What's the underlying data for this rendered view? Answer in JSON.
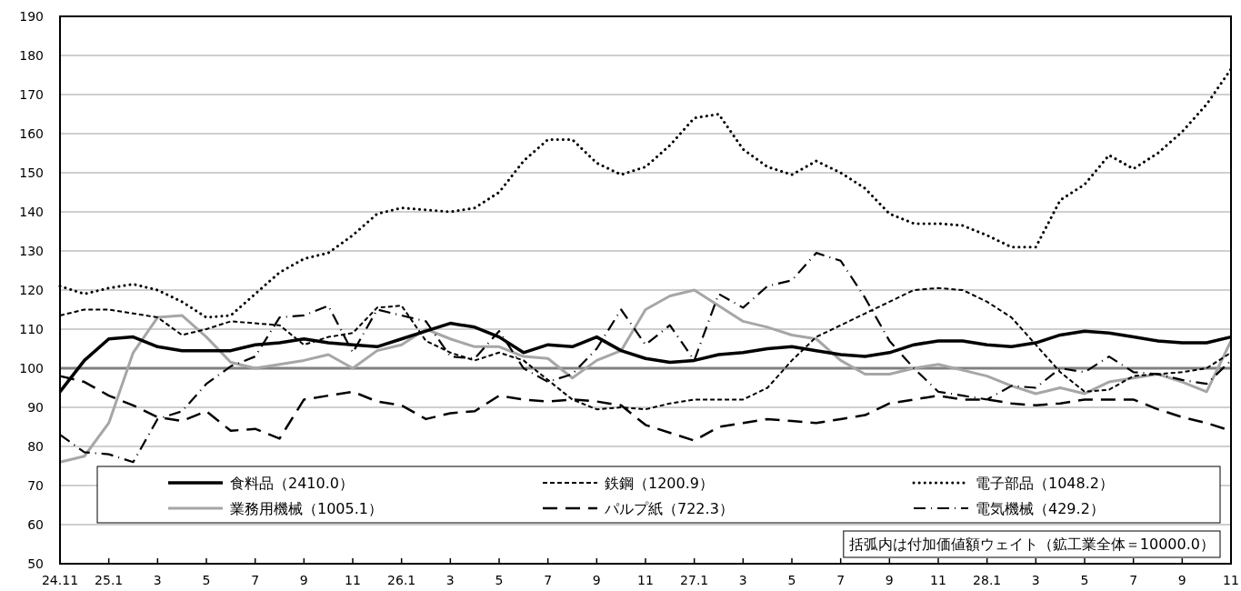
{
  "chart_data": {
    "type": "line",
    "categories": [
      "24.11",
      null,
      "25.1",
      null,
      "3",
      null,
      "5",
      null,
      "7",
      null,
      "9",
      null,
      "11",
      null,
      "26.1",
      null,
      "3",
      null,
      "5",
      null,
      "7",
      null,
      "9",
      null,
      "11",
      null,
      "27.1",
      null,
      "3",
      null,
      "5",
      null,
      "7",
      null,
      "9",
      null,
      "11",
      null,
      "28.1",
      null,
      "3",
      null,
      "5",
      null,
      "7",
      null,
      "9",
      null,
      "11"
    ],
    "ylim": [
      50,
      190
    ],
    "yticks": [
      50,
      60,
      70,
      80,
      90,
      100,
      110,
      120,
      130,
      140,
      150,
      160,
      170,
      180,
      190
    ],
    "grid": "y",
    "legend": "bottom",
    "ref_lines": [
      {
        "axis": "y",
        "value": 100,
        "color": "#808080"
      }
    ],
    "annotations": [
      "括弧内は付加価値額ウェイト（鉱工業全体＝10000.0）"
    ],
    "series": [
      {
        "name": "食料品（2410.0）",
        "color": "#000000",
        "line_style": "solid",
        "values": [
          94,
          102,
          107.5,
          108,
          105.5,
          104.5,
          104.5,
          104.5,
          106,
          106.5,
          107.5,
          106.5,
          106,
          105.5,
          107.5,
          109.5,
          111.5,
          110.5,
          108,
          104,
          106,
          105.5,
          108,
          104.5,
          102.5,
          101.5,
          102,
          103.5,
          104,
          105,
          105.5,
          104.5,
          103.5,
          103,
          104,
          106,
          107,
          107,
          106,
          105.5,
          106.5,
          108.5,
          109.5,
          109,
          108,
          107,
          106.5,
          106.5,
          108
        ]
      },
      {
        "name": "鉄鋼（1200.9）",
        "color": "#000000",
        "line_style": "dashed",
        "values": [
          113.5,
          115,
          115,
          114,
          113,
          108.5,
          110,
          112,
          111.5,
          111,
          106,
          108,
          109,
          115.5,
          116,
          107,
          104,
          102,
          104,
          102,
          97,
          92,
          89.5,
          90,
          89.5,
          91,
          92,
          92,
          92,
          95,
          102,
          108,
          111,
          114,
          117,
          120,
          120.5,
          120,
          117,
          113,
          106,
          99,
          94,
          94.5,
          98,
          98.5,
          99,
          100,
          104
        ]
      },
      {
        "name": "電子部品（1048.2）",
        "color": "#000000",
        "line_style": "dotted",
        "values": [
          121,
          119,
          120.5,
          121.5,
          120,
          117,
          113,
          113.5,
          119,
          124.5,
          128,
          129.5,
          134,
          139.5,
          141,
          140.5,
          140,
          141,
          145,
          153,
          158.5,
          158.5,
          152.5,
          149.5,
          151.5,
          157,
          164,
          165,
          156,
          151.5,
          149.5,
          153,
          150,
          146,
          139.5,
          137,
          137,
          136.5,
          134,
          131,
          131,
          143,
          147,
          154.5,
          151,
          155,
          160.5,
          167.5,
          176.5
        ]
      },
      {
        "name": "業務用機械（1005.1）",
        "color": "#a6a6a6",
        "line_style": "solid",
        "values": [
          76,
          77.5,
          86,
          104,
          113,
          113.5,
          108,
          101.5,
          100,
          101,
          102,
          103.5,
          100,
          104.5,
          106,
          110,
          107.5,
          105.5,
          105.5,
          103,
          102.5,
          97.5,
          102,
          104.5,
          115,
          118.5,
          120,
          116,
          112,
          110.5,
          108.5,
          107.5,
          102,
          98.5,
          98.5,
          100,
          101,
          99.5,
          98,
          95.5,
          93.5,
          95,
          93.5,
          96.5,
          97.5,
          98.5,
          96.5,
          94,
          107
        ]
      },
      {
        "name": "パルプ紙（722.3）",
        "color": "#000000",
        "line_style": "longdash",
        "values": [
          98,
          96.5,
          93,
          90.5,
          87.5,
          86.5,
          89,
          84,
          84.5,
          82,
          92,
          93,
          94,
          91.5,
          90.5,
          87,
          88.5,
          89,
          93,
          92,
          91.5,
          92,
          91.5,
          90.5,
          85.5,
          83.5,
          81.5,
          85,
          86,
          87,
          86.5,
          86,
          87,
          88,
          91,
          92,
          93,
          92,
          92,
          91,
          90.5,
          91,
          92,
          92,
          92,
          89.5,
          87.5,
          86,
          84
        ]
      },
      {
        "name": "電気機械（429.2）",
        "color": "#000000",
        "line_style": "dashdot",
        "values": [
          83,
          78.5,
          78,
          76,
          87,
          89,
          96,
          100.5,
          103,
          113,
          113.5,
          116,
          104,
          115,
          113.5,
          112,
          103,
          102.5,
          109.5,
          100,
          96.5,
          98.5,
          105,
          115,
          106,
          111,
          102,
          119,
          115.5,
          121,
          122.5,
          129.5,
          127.5,
          118,
          107,
          100,
          94,
          93,
          92,
          95.5,
          95,
          100,
          99,
          103,
          99,
          98.5,
          97,
          96,
          102
        ]
      }
    ]
  }
}
